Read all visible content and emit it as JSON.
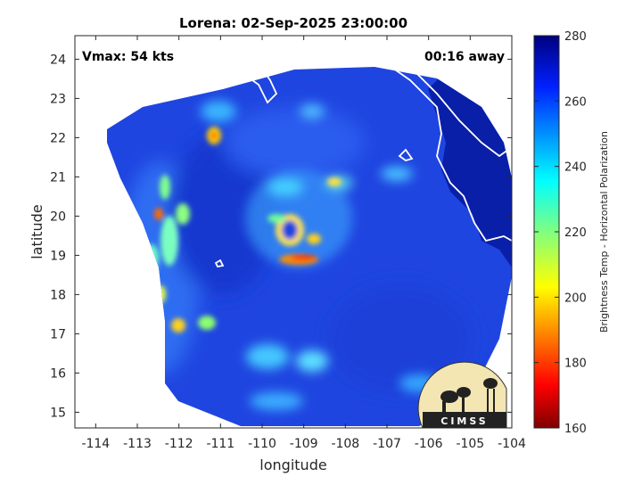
{
  "chart_data": {
    "type": "heatmap",
    "title": "Lorena: 02-Sep-2025 23:00:00",
    "annotations": {
      "vmax": "Vmax: 54 kts",
      "time_away": "00:16 away"
    },
    "xlabel": "longitude",
    "ylabel": "latitude",
    "xlim": [
      -114.5,
      -104
    ],
    "ylim": [
      14.6,
      24.6
    ],
    "xticks": [
      "-114",
      "-113",
      "-112",
      "-111",
      "-110",
      "-109",
      "-108",
      "-107",
      "-106",
      "-105",
      "-104"
    ],
    "yticks": [
      "15",
      "16",
      "17",
      "18",
      "19",
      "20",
      "21",
      "22",
      "23",
      "24"
    ],
    "colorbar": {
      "label": "Brightness Temp - Horizontal Polarization",
      "range": [
        160,
        280
      ],
      "ticks": [
        "160",
        "180",
        "200",
        "220",
        "240",
        "260",
        "280"
      ]
    },
    "storm_center": {
      "lon": -109.2,
      "lat": 19.3
    },
    "logo_text": "CIMSS",
    "grid": false,
    "colors": {
      "background_field": "#1f45e0",
      "land": "#0a1fa8",
      "coastline": "#ffffff",
      "warm_band": "#ffd21e",
      "cold_core": "#ff7a00"
    }
  }
}
